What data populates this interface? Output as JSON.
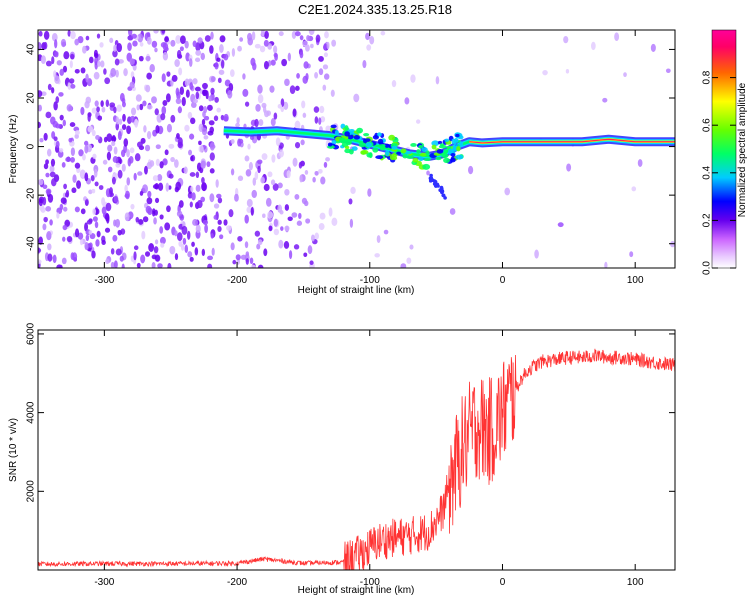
{
  "title": "C2E1.2024.335.13.25.R18",
  "chart_data": [
    {
      "type": "heatmap",
      "xlabel": "Height of straight line (km)",
      "ylabel": "Frequency (Hz)",
      "xlim": [
        -350,
        130
      ],
      "ylim": [
        -50,
        48
      ],
      "x_ticks": [
        -300,
        -200,
        -100,
        0,
        100
      ],
      "y_ticks": [
        -40,
        -20,
        0,
        20,
        40
      ],
      "colorbar": {
        "label": "Normalized spectral amplitude",
        "range": [
          0,
          1
        ],
        "ticks": [
          "0.0",
          "0.2",
          "0.4",
          "0.6",
          "0.8"
        ],
        "colormap": [
          "#ffffff",
          "#cc66ff",
          "#6600ee",
          "#0000ff",
          "#00ccff",
          "#00ff66",
          "#66ff00",
          "#ffff00",
          "#ff6600",
          "#ff0066",
          "#ff0099"
        ]
      },
      "signal_track": [
        {
          "x": -210,
          "y": 6.5
        },
        {
          "x": -190,
          "y": 6
        },
        {
          "x": -170,
          "y": 6.5
        },
        {
          "x": -150,
          "y": 5.5
        },
        {
          "x": -130,
          "y": 4.5
        },
        {
          "x": -115,
          "y": 3
        },
        {
          "x": -100,
          "y": 1
        },
        {
          "x": -85,
          "y": -1
        },
        {
          "x": -70,
          "y": -3
        },
        {
          "x": -55,
          "y": -4
        },
        {
          "x": -45,
          "y": -3
        },
        {
          "x": -35,
          "y": 0
        },
        {
          "x": -25,
          "y": 2
        },
        {
          "x": -15,
          "y": 1.5
        },
        {
          "x": 0,
          "y": 2
        },
        {
          "x": 20,
          "y": 2
        },
        {
          "x": 40,
          "y": 2
        },
        {
          "x": 60,
          "y": 2
        },
        {
          "x": 80,
          "y": 3
        },
        {
          "x": 100,
          "y": 2
        },
        {
          "x": 130,
          "y": 2
        }
      ]
    },
    {
      "type": "line",
      "xlabel": "Height of straight line (km)",
      "ylabel": "SNR (10 * v/v)",
      "xlim": [
        -350,
        130
      ],
      "ylim": [
        0,
        6100
      ],
      "x_ticks": [
        -300,
        -200,
        -100,
        0,
        100
      ],
      "y_ticks": [
        2000,
        4000,
        6000
      ],
      "color": "#ff3333",
      "series": [
        {
          "x": [
            -350,
            -300,
            -250,
            -200,
            -180,
            -150,
            -120,
            -105,
            -95,
            -85,
            -75,
            -65,
            -55,
            -45,
            -40,
            -35,
            -30,
            -25,
            -20,
            -15,
            -10,
            -5,
            0,
            5,
            10,
            15,
            20,
            25,
            30,
            40,
            50,
            60,
            70,
            80,
            90,
            100,
            110,
            120,
            130
          ],
          "values": [
            150,
            160,
            160,
            170,
            280,
            170,
            200,
            450,
            700,
            800,
            850,
            900,
            1000,
            1500,
            2200,
            2600,
            3100,
            3400,
            3700,
            3600,
            3500,
            3700,
            4000,
            4300,
            4600,
            4900,
            5100,
            5200,
            5300,
            5350,
            5400,
            5400,
            5450,
            5400,
            5400,
            5350,
            5300,
            5250,
            5200
          ]
        }
      ]
    }
  ]
}
